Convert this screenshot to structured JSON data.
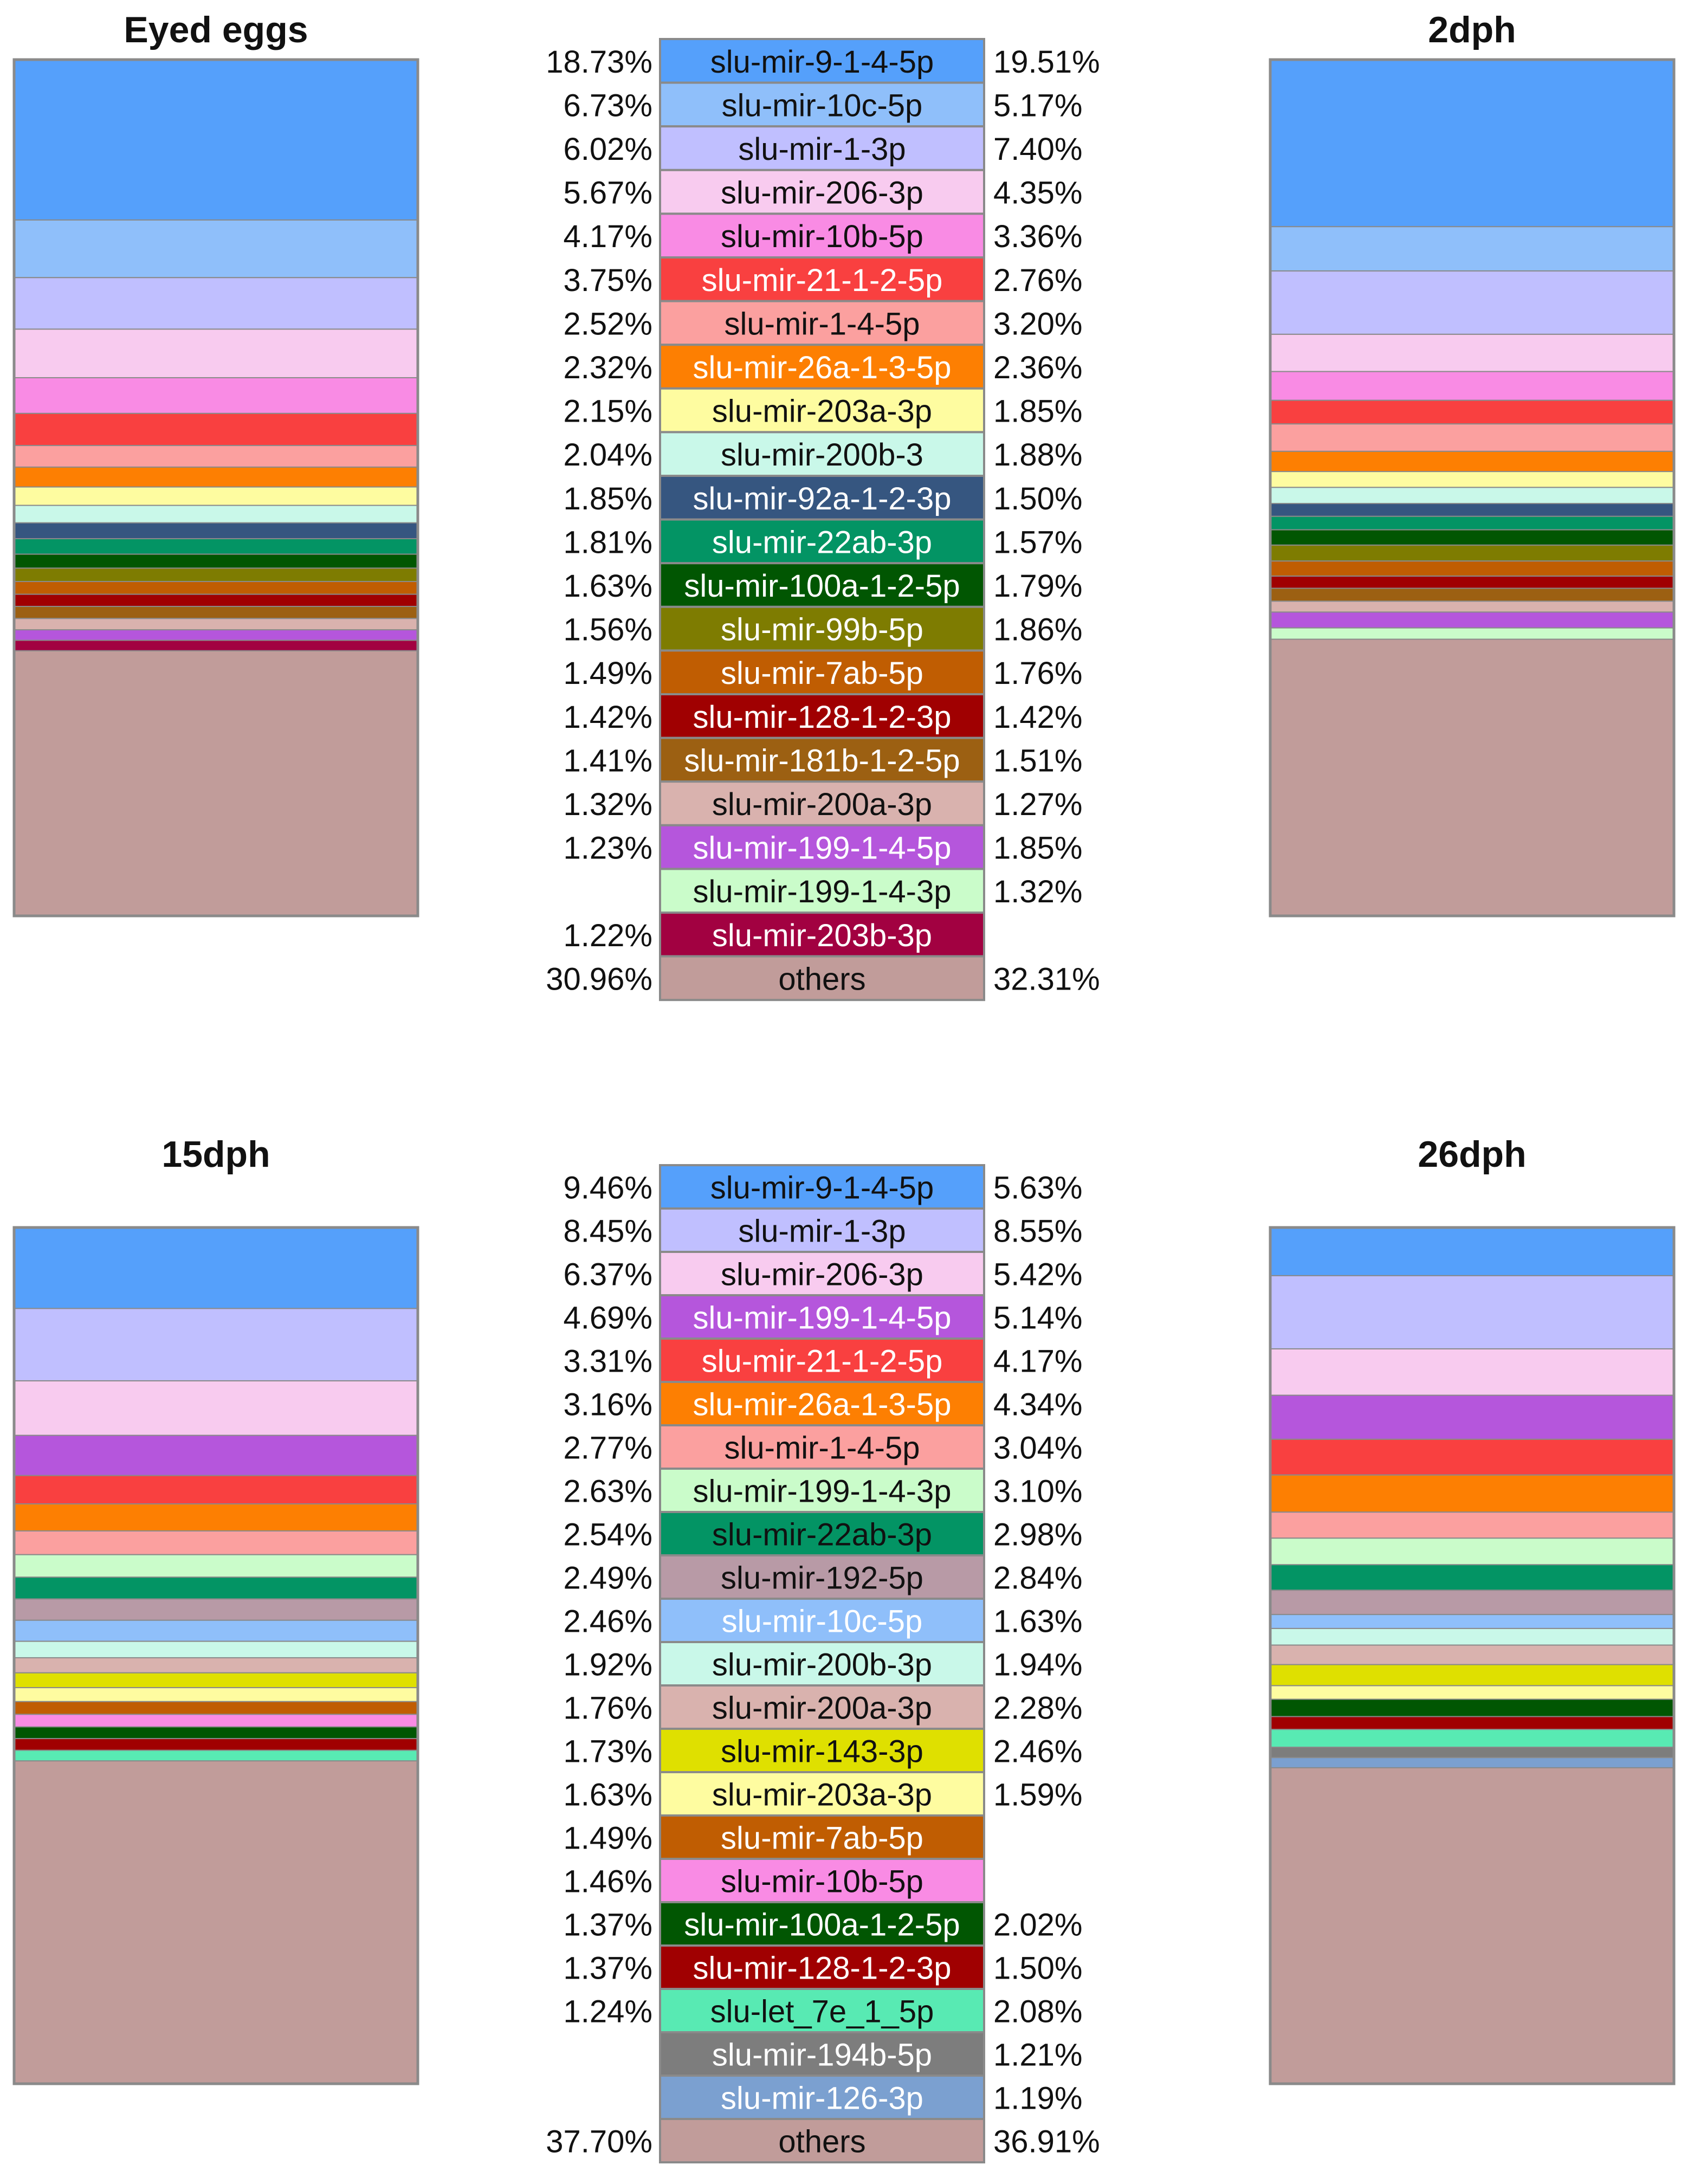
{
  "chart_data": [
    {
      "type": "stacked-bar",
      "panel": "top",
      "series_names": [
        "Eyed eggs",
        "2dph"
      ],
      "legend_order_follows_series": 0,
      "categories": [
        {
          "name": "slu-mir-9-1-4-5p",
          "color": "#55a0fb",
          "text_color": "#111111",
          "values": [
            18.73,
            19.51
          ]
        },
        {
          "name": "slu-mir-10c-5p",
          "color": "#8fbffa",
          "text_color": "#111111",
          "values": [
            6.73,
            5.17
          ]
        },
        {
          "name": "slu-mir-1-3p",
          "color": "#c0bfff",
          "text_color": "#111111",
          "values": [
            6.02,
            7.4
          ]
        },
        {
          "name": "slu-mir-206-3p",
          "color": "#f8cbef",
          "text_color": "#111111",
          "values": [
            5.67,
            4.35
          ]
        },
        {
          "name": "slu-mir-10b-5p",
          "color": "#f98be4",
          "text_color": "#111111",
          "values": [
            4.17,
            3.36
          ]
        },
        {
          "name": "slu-mir-21-1-2-5p",
          "color": "#f94040",
          "text_color": "#ffffff",
          "values": [
            3.75,
            2.76
          ]
        },
        {
          "name": "slu-mir-1-4-5p",
          "color": "#fba09f",
          "text_color": "#111111",
          "values": [
            2.52,
            3.2
          ]
        },
        {
          "name": "slu-mir-26a-1-3-5p",
          "color": "#fd7f02",
          "text_color": "#ffffff",
          "values": [
            2.32,
            2.36
          ]
        },
        {
          "name": "slu-mir-203a-3p",
          "color": "#fefca0",
          "text_color": "#111111",
          "values": [
            2.15,
            1.85
          ]
        },
        {
          "name": "slu-mir-200b-3",
          "color": "#c9f8e9",
          "text_color": "#111111",
          "values": [
            2.04,
            1.88
          ]
        },
        {
          "name": "slu-mir-92a-1-2-3p",
          "color": "#365680",
          "text_color": "#ffffff",
          "values": [
            1.85,
            1.5
          ]
        },
        {
          "name": "slu-mir-22ab-3p",
          "color": "#039464",
          "text_color": "#ffffff",
          "values": [
            1.81,
            1.57
          ]
        },
        {
          "name": "slu-mir-100a-1-2-5p",
          "color": "#015602",
          "text_color": "#ffffff",
          "values": [
            1.63,
            1.79
          ]
        },
        {
          "name": "slu-mir-99b-5p",
          "color": "#7e7c01",
          "text_color": "#ffffff",
          "values": [
            1.56,
            1.86
          ]
        },
        {
          "name": "slu-mir-7ab-5p",
          "color": "#c05d02",
          "text_color": "#ffffff",
          "values": [
            1.49,
            1.76
          ]
        },
        {
          "name": "slu-mir-128-1-2-3p",
          "color": "#a00001",
          "text_color": "#ffffff",
          "values": [
            1.42,
            1.42
          ]
        },
        {
          "name": "slu-mir-181b-1-2-5p",
          "color": "#9c6012",
          "text_color": "#ffffff",
          "values": [
            1.41,
            1.51
          ]
        },
        {
          "name": "slu-mir-200a-3p",
          "color": "#d9b2ae",
          "text_color": "#111111",
          "values": [
            1.32,
            1.27
          ]
        },
        {
          "name": "slu-mir-199-1-4-5p",
          "color": "#b556dc",
          "text_color": "#ffffff",
          "values": [
            1.23,
            1.85
          ]
        },
        {
          "name": "slu-mir-199-1-4-3p",
          "color": "#cafcca",
          "text_color": "#111111",
          "values": [
            null,
            1.32
          ]
        },
        {
          "name": "slu-mir-203b-3p",
          "color": "#a20141",
          "text_color": "#ffffff",
          "values": [
            1.22,
            null
          ]
        },
        {
          "name": "others",
          "color": "#c19c9a",
          "text_color": "#111111",
          "values": [
            30.96,
            32.31
          ]
        }
      ],
      "left_labels": [
        "18.73%",
        "6.73%",
        "6.02%",
        "5.67%",
        "4.17%",
        "3.75%",
        "2.52%",
        "2.32%",
        "2.15%",
        "2.04%",
        "1.85%",
        "1.81%",
        "1.63%",
        "1.56%",
        "1.49%",
        "1.42%",
        "1.41%",
        "1.32%",
        "1.23%",
        "",
        "1.22%",
        "30.96%"
      ],
      "right_labels": [
        "19.51%",
        "5.17%",
        "7.40%",
        "4.35%",
        "3.36%",
        "2.76%",
        "3.20%",
        "2.36%",
        "1.85%",
        "1.88%",
        "1.50%",
        "1.57%",
        "1.79%",
        "1.86%",
        "1.76%",
        "1.42%",
        "1.51%",
        "1.27%",
        "1.85%",
        "1.32%",
        "",
        "32.31%"
      ]
    },
    {
      "type": "stacked-bar",
      "panel": "bottom",
      "series_names": [
        "15dph",
        "26dph"
      ],
      "legend_order_follows_series": 0,
      "categories": [
        {
          "name": "slu-mir-9-1-4-5p",
          "color": "#55a0fb",
          "text_color": "#111111",
          "values": [
            9.46,
            5.63
          ]
        },
        {
          "name": "slu-mir-1-3p",
          "color": "#c0bfff",
          "text_color": "#111111",
          "values": [
            8.45,
            8.55
          ]
        },
        {
          "name": "slu-mir-206-3p",
          "color": "#f8cbef",
          "text_color": "#111111",
          "values": [
            6.37,
            5.42
          ]
        },
        {
          "name": "slu-mir-199-1-4-5p",
          "color": "#b556dc",
          "text_color": "#ffffff",
          "values": [
            4.69,
            5.14
          ]
        },
        {
          "name": "slu-mir-21-1-2-5p",
          "color": "#f94040",
          "text_color": "#ffffff",
          "values": [
            3.31,
            4.17
          ]
        },
        {
          "name": "slu-mir-26a-1-3-5p",
          "color": "#fd7f02",
          "text_color": "#ffffff",
          "values": [
            3.16,
            4.34
          ]
        },
        {
          "name": "slu-mir-1-4-5p",
          "color": "#fba09f",
          "text_color": "#111111",
          "values": [
            2.77,
            3.04
          ]
        },
        {
          "name": "slu-mir-199-1-4-3p",
          "color": "#cafcca",
          "text_color": "#111111",
          "values": [
            2.63,
            3.1
          ]
        },
        {
          "name": "slu-mir-22ab-3p",
          "color": "#039464",
          "text_color": "#111111",
          "values": [
            2.54,
            2.98
          ]
        },
        {
          "name": "slu-mir-192-5p",
          "color": "#b89aa6",
          "text_color": "#111111",
          "values": [
            2.49,
            2.84
          ]
        },
        {
          "name": "slu-mir-10c-5p",
          "color": "#8fbffa",
          "text_color": "#ffffff",
          "values": [
            2.46,
            1.63
          ]
        },
        {
          "name": "slu-mir-200b-3p",
          "color": "#c9f8e9",
          "text_color": "#111111",
          "values": [
            1.92,
            1.94
          ]
        },
        {
          "name": "slu-mir-200a-3p",
          "color": "#d9b2ae",
          "text_color": "#111111",
          "values": [
            1.76,
            2.28
          ]
        },
        {
          "name": "slu-mir-143-3p",
          "color": "#dfe000",
          "text_color": "#111111",
          "values": [
            1.73,
            2.46
          ]
        },
        {
          "name": "slu-mir-203a-3p",
          "color": "#fefca0",
          "text_color": "#111111",
          "values": [
            1.63,
            1.59
          ]
        },
        {
          "name": "slu-mir-7ab-5p",
          "color": "#c05d02",
          "text_color": "#ffffff",
          "values": [
            1.49,
            null
          ]
        },
        {
          "name": "slu-mir-10b-5p",
          "color": "#f98be4",
          "text_color": "#111111",
          "values": [
            1.46,
            null
          ]
        },
        {
          "name": "slu-mir-100a-1-2-5p",
          "color": "#015602",
          "text_color": "#ffffff",
          "values": [
            1.37,
            2.02
          ]
        },
        {
          "name": "slu-mir-128-1-2-3p",
          "color": "#a00001",
          "text_color": "#ffffff",
          "values": [
            1.37,
            1.5
          ]
        },
        {
          "name": "slu-let_7e_1_5p",
          "color": "#58eab3",
          "text_color": "#111111",
          "values": [
            1.24,
            2.08
          ]
        },
        {
          "name": "slu-mir-194b-5p",
          "color": "#7d7d7d",
          "text_color": "#ffffff",
          "values": [
            null,
            1.21
          ]
        },
        {
          "name": "slu-mir-126-3p",
          "color": "#7ba0d0",
          "text_color": "#ffffff",
          "values": [
            null,
            1.19
          ]
        },
        {
          "name": "others",
          "color": "#c19c9a",
          "text_color": "#111111",
          "values": [
            37.7,
            36.91
          ]
        }
      ],
      "left_labels": [
        "9.46%",
        "8.45%",
        "6.37%",
        "4.69%",
        "3.31%",
        "3.16%",
        "2.77%",
        "2.63%",
        "2.54%",
        "2.49%",
        "2.46%",
        "1.92%",
        "1.76%",
        "1.73%",
        "1.63%",
        "1.49%",
        "1.46%",
        "1.37%",
        "1.37%",
        "1.24%",
        "",
        "",
        "37.70%"
      ],
      "right_labels": [
        "5.63%",
        "8.55%",
        "5.42%",
        "5.14%",
        "4.17%",
        "4.34%",
        "3.04%",
        "3.10%",
        "2.98%",
        "2.84%",
        "1.63%",
        "1.94%",
        "2.28%",
        "2.46%",
        "1.59%",
        "",
        "",
        "2.02%",
        "1.50%",
        "2.08%",
        "1.21%",
        "1.19%",
        "36.91%"
      ]
    }
  ]
}
